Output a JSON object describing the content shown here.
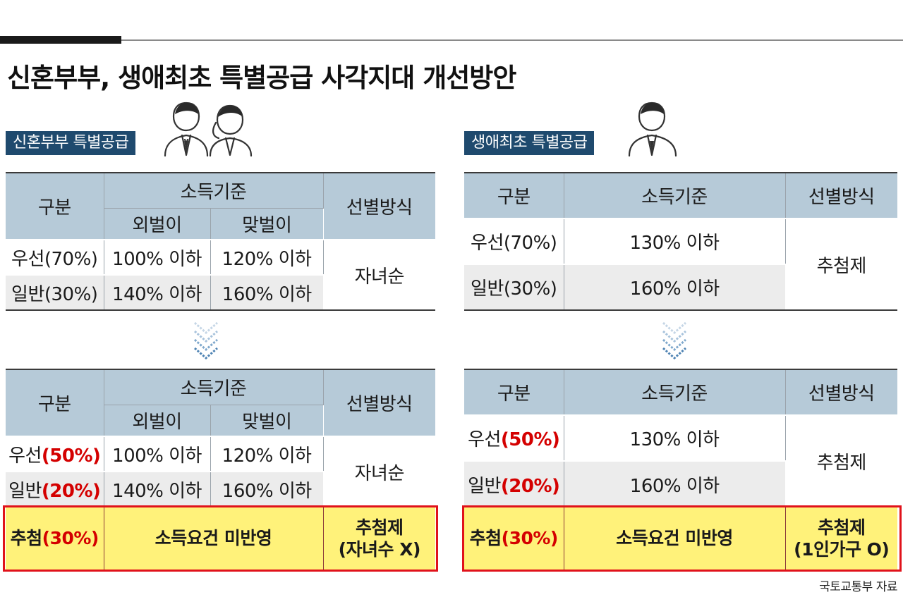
{
  "title": "신혼부부, 생애최초 특별공급 사각지대 개선방안",
  "source": "국토교통부 자료",
  "icons": [
    "couple-icon",
    "person-icon",
    "chevron-down-icon"
  ],
  "colors": {
    "header_bg": "#b6cad8",
    "tab_bg": "#1f4a6e",
    "highlight": "#fff27a",
    "accent_red": "#d40000"
  },
  "newlywed": {
    "tab": "신혼부부 특별공급",
    "before": {
      "col_category": "구분",
      "col_income": "소득기준",
      "col_single": "외벌이",
      "col_dual": "맞벌이",
      "col_method": "선별방식",
      "rows": [
        {
          "cat": "우선(70%)",
          "single": "100% 이하",
          "dual": "120% 이하"
        },
        {
          "cat": "일반(30%)",
          "single": "140% 이하",
          "dual": "160% 이하"
        }
      ],
      "method": "자녀순"
    },
    "after": {
      "col_category": "구분",
      "col_income": "소득기준",
      "col_single": "외벌이",
      "col_dual": "맞벌이",
      "col_method": "선별방식",
      "rows": [
        {
          "cat_prefix": "우선",
          "cat_pct": "(50%)",
          "single": "100% 이하",
          "dual": "120% 이하"
        },
        {
          "cat_prefix": "일반",
          "cat_pct": "(20%)",
          "single": "140% 이하",
          "dual": "160% 이하"
        }
      ],
      "method": "자녀순",
      "lottery": {
        "cat_prefix": "추첨",
        "cat_pct": "(30%)",
        "income": "소득요건 미반영",
        "method_1": "추첨제",
        "method_2": "(자녀수 X)"
      }
    }
  },
  "first_time": {
    "tab": "생애최초 특별공급",
    "before": {
      "col_category": "구분",
      "col_income": "소득기준",
      "col_method": "선별방식",
      "rows": [
        {
          "cat": "우선(70%)",
          "income": "130% 이하"
        },
        {
          "cat": "일반(30%)",
          "income": "160% 이하"
        }
      ],
      "method": "추첨제"
    },
    "after": {
      "col_category": "구분",
      "col_income": "소득기준",
      "col_method": "선별방식",
      "rows": [
        {
          "cat_prefix": "우선",
          "cat_pct": "(50%)",
          "income": "130% 이하"
        },
        {
          "cat_prefix": "일반",
          "cat_pct": "(20%)",
          "income": "160% 이하"
        }
      ],
      "method": "추첨제",
      "lottery": {
        "cat_prefix": "추첨",
        "cat_pct": "(30%)",
        "income": "소득요건 미반영",
        "method_1": "추첨제",
        "method_2": "(1인가구 O)"
      }
    }
  }
}
